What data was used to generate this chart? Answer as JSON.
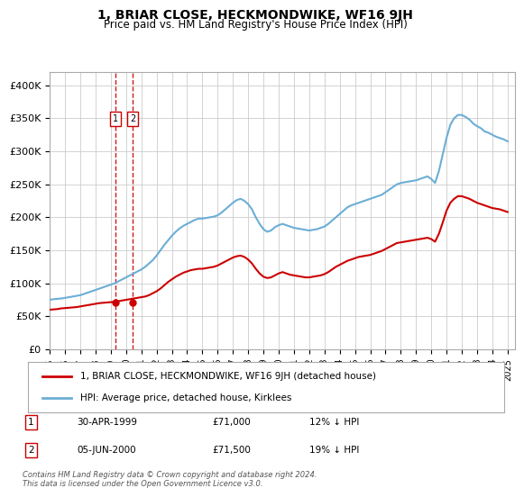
{
  "title": "1, BRIAR CLOSE, HECKMONDWIKE, WF16 9JH",
  "subtitle": "Price paid vs. HM Land Registry's House Price Index (HPI)",
  "ylabel_ticks": [
    "£0",
    "£50K",
    "£100K",
    "£150K",
    "£200K",
    "£250K",
    "£300K",
    "£350K",
    "£400K"
  ],
  "ytick_vals": [
    0,
    50000,
    100000,
    150000,
    200000,
    250000,
    300000,
    350000,
    400000
  ],
  "ylim": [
    0,
    420000
  ],
  "xlim_start": 1995.0,
  "xlim_end": 2025.5,
  "hpi_color": "#6baed6",
  "price_color": "#cc0000",
  "transaction_color": "#cc0000",
  "dashed_line_color": "#cc0000",
  "grid_color": "#cccccc",
  "background_color": "#ffffff",
  "transactions": [
    {
      "label": "1",
      "date_num": 1999.33,
      "price": 71000
    },
    {
      "label": "2",
      "date_num": 2000.43,
      "price": 71500
    }
  ],
  "legend_entry1": "1, BRIAR CLOSE, HECKMONDWIKE, WF16 9JH (detached house)",
  "legend_entry2": "HPI: Average price, detached house, Kirklees",
  "table_rows": [
    {
      "num": "1",
      "date": "30-APR-1999",
      "price": "£71,000",
      "hpi": "12% ↓ HPI"
    },
    {
      "num": "2",
      "date": "05-JUN-2000",
      "price": "£71,500",
      "hpi": "19% ↓ HPI"
    }
  ],
  "footnote": "Contains HM Land Registry data © Crown copyright and database right 2024.\nThis data is licensed under the Open Government Licence v3.0.",
  "hpi_data_x": [
    1995.0,
    1995.25,
    1995.5,
    1995.75,
    1996.0,
    1996.25,
    1996.5,
    1996.75,
    1997.0,
    1997.25,
    1997.5,
    1997.75,
    1998.0,
    1998.25,
    1998.5,
    1998.75,
    1999.0,
    1999.25,
    1999.5,
    1999.75,
    2000.0,
    2000.25,
    2000.5,
    2000.75,
    2001.0,
    2001.25,
    2001.5,
    2001.75,
    2002.0,
    2002.25,
    2002.5,
    2002.75,
    2003.0,
    2003.25,
    2003.5,
    2003.75,
    2004.0,
    2004.25,
    2004.5,
    2004.75,
    2005.0,
    2005.25,
    2005.5,
    2005.75,
    2006.0,
    2006.25,
    2006.5,
    2006.75,
    2007.0,
    2007.25,
    2007.5,
    2007.75,
    2008.0,
    2008.25,
    2008.5,
    2008.75,
    2009.0,
    2009.25,
    2009.5,
    2009.75,
    2010.0,
    2010.25,
    2010.5,
    2010.75,
    2011.0,
    2011.25,
    2011.5,
    2011.75,
    2012.0,
    2012.25,
    2012.5,
    2012.75,
    2013.0,
    2013.25,
    2013.5,
    2013.75,
    2014.0,
    2014.25,
    2014.5,
    2014.75,
    2015.0,
    2015.25,
    2015.5,
    2015.75,
    2016.0,
    2016.25,
    2016.5,
    2016.75,
    2017.0,
    2017.25,
    2017.5,
    2017.75,
    2018.0,
    2018.25,
    2018.5,
    2018.75,
    2019.0,
    2019.25,
    2019.5,
    2019.75,
    2020.0,
    2020.25,
    2020.5,
    2020.75,
    2021.0,
    2021.25,
    2021.5,
    2021.75,
    2022.0,
    2022.25,
    2022.5,
    2022.75,
    2023.0,
    2023.25,
    2023.5,
    2023.75,
    2024.0,
    2024.25,
    2024.5,
    2024.75,
    2025.0
  ],
  "hpi_data_y": [
    75000,
    76000,
    76500,
    77000,
    78000,
    79000,
    80000,
    81000,
    82000,
    84000,
    86000,
    88000,
    90000,
    92000,
    94000,
    96000,
    98000,
    100000,
    103000,
    106000,
    109000,
    112000,
    115000,
    118000,
    121000,
    125000,
    130000,
    135000,
    142000,
    150000,
    158000,
    165000,
    172000,
    178000,
    183000,
    187000,
    190000,
    193000,
    196000,
    198000,
    198000,
    199000,
    200000,
    201000,
    203000,
    207000,
    212000,
    217000,
    222000,
    226000,
    228000,
    225000,
    220000,
    212000,
    200000,
    190000,
    182000,
    178000,
    180000,
    185000,
    188000,
    190000,
    188000,
    186000,
    184000,
    183000,
    182000,
    181000,
    180000,
    181000,
    182000,
    184000,
    186000,
    190000,
    195000,
    200000,
    205000,
    210000,
    215000,
    218000,
    220000,
    222000,
    224000,
    226000,
    228000,
    230000,
    232000,
    234000,
    238000,
    242000,
    246000,
    250000,
    252000,
    253000,
    254000,
    255000,
    256000,
    258000,
    260000,
    262000,
    258000,
    252000,
    270000,
    295000,
    320000,
    340000,
    350000,
    355000,
    355000,
    352000,
    348000,
    342000,
    338000,
    335000,
    330000,
    328000,
    325000,
    322000,
    320000,
    318000,
    315000
  ],
  "price_data_x": [
    1995.0,
    1995.25,
    1995.5,
    1995.75,
    1996.0,
    1996.25,
    1996.5,
    1996.75,
    1997.0,
    1997.25,
    1997.5,
    1997.75,
    1998.0,
    1998.25,
    1998.5,
    1998.75,
    1999.0,
    1999.25,
    1999.5,
    1999.75,
    2000.0,
    2000.25,
    2000.5,
    2000.75,
    2001.0,
    2001.25,
    2001.5,
    2001.75,
    2002.0,
    2002.25,
    2002.5,
    2002.75,
    2003.0,
    2003.25,
    2003.5,
    2003.75,
    2004.0,
    2004.25,
    2004.5,
    2004.75,
    2005.0,
    2005.25,
    2005.5,
    2005.75,
    2006.0,
    2006.25,
    2006.5,
    2006.75,
    2007.0,
    2007.25,
    2007.5,
    2007.75,
    2008.0,
    2008.25,
    2008.5,
    2008.75,
    2009.0,
    2009.25,
    2009.5,
    2009.75,
    2010.0,
    2010.25,
    2010.5,
    2010.75,
    2011.0,
    2011.25,
    2011.5,
    2011.75,
    2012.0,
    2012.25,
    2012.5,
    2012.75,
    2013.0,
    2013.25,
    2013.5,
    2013.75,
    2014.0,
    2014.25,
    2014.5,
    2014.75,
    2015.0,
    2015.25,
    2015.5,
    2015.75,
    2016.0,
    2016.25,
    2016.5,
    2016.75,
    2017.0,
    2017.25,
    2017.5,
    2017.75,
    2018.0,
    2018.25,
    2018.5,
    2018.75,
    2019.0,
    2019.25,
    2019.5,
    2019.75,
    2020.0,
    2020.25,
    2020.5,
    2020.75,
    2021.0,
    2021.25,
    2021.5,
    2021.75,
    2022.0,
    2022.25,
    2022.5,
    2022.75,
    2023.0,
    2023.25,
    2023.5,
    2023.75,
    2024.0,
    2024.25,
    2024.5,
    2024.75,
    2025.0
  ],
  "price_data_y": [
    60000,
    60500,
    61000,
    62000,
    62500,
    63000,
    63500,
    64000,
    65000,
    66000,
    67000,
    68000,
    69000,
    70000,
    70500,
    71000,
    71500,
    72000,
    73000,
    74000,
    75000,
    76000,
    77000,
    78000,
    79000,
    80000,
    82000,
    85000,
    88000,
    92000,
    97000,
    102000,
    106000,
    110000,
    113000,
    116000,
    118000,
    120000,
    121000,
    122000,
    122000,
    123000,
    124000,
    125000,
    127000,
    130000,
    133000,
    136000,
    139000,
    141000,
    142000,
    140000,
    136000,
    130000,
    122000,
    115000,
    110000,
    108000,
    109000,
    112000,
    115000,
    117000,
    115000,
    113000,
    112000,
    111000,
    110000,
    109000,
    109000,
    110000,
    111000,
    112000,
    114000,
    117000,
    121000,
    125000,
    128000,
    131000,
    134000,
    136000,
    138000,
    140000,
    141000,
    142000,
    143000,
    145000,
    147000,
    149000,
    152000,
    155000,
    158000,
    161000,
    162000,
    163000,
    164000,
    165000,
    166000,
    167000,
    168000,
    169000,
    167000,
    163000,
    175000,
    192000,
    210000,
    222000,
    228000,
    232000,
    232000,
    230000,
    228000,
    225000,
    222000,
    220000,
    218000,
    216000,
    214000,
    213000,
    212000,
    210000,
    208000
  ],
  "xtick_years": [
    1995,
    1996,
    1997,
    1998,
    1999,
    2000,
    2001,
    2002,
    2003,
    2004,
    2005,
    2006,
    2007,
    2008,
    2009,
    2010,
    2011,
    2012,
    2013,
    2014,
    2015,
    2016,
    2017,
    2018,
    2019,
    2020,
    2021,
    2022,
    2023,
    2024,
    2025
  ]
}
